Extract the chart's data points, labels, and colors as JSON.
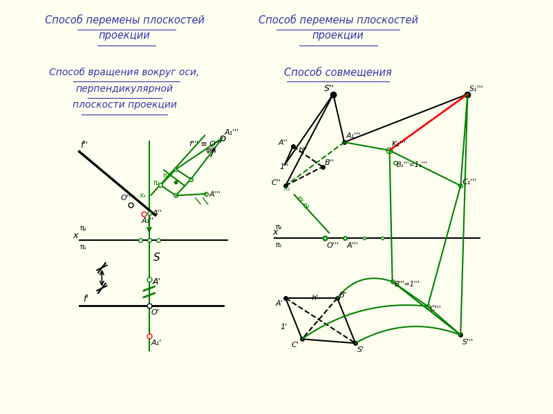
{
  "bg_color": "#FFFFF0",
  "title_color": "#3333AA",
  "title1_line1": "Способ перемены плоскостей",
  "title1_line2": "проекции",
  "title2_line1": "Способ вращения вокруг оси,",
  "title2_line2": "перпендикулярной",
  "title2_line3": "плоскости проекции",
  "title3_line1": "Способ перемены плоскостей",
  "title3_line2": "проекции",
  "title4_line1": "Способ совмещения"
}
